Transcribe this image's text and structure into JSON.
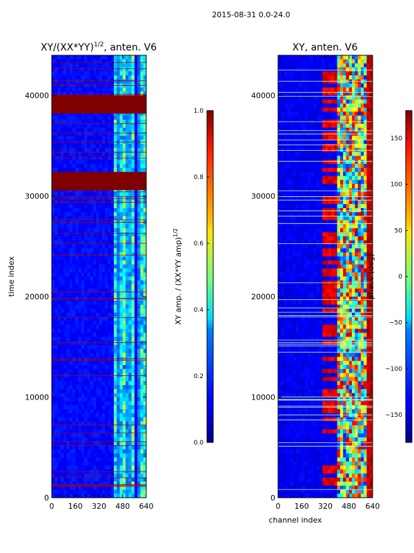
{
  "figure": {
    "suptitle": "2015-08-31 0.0-24.0"
  },
  "chart_data": [
    {
      "type": "heatmap",
      "title": "XY/(XX*YY)",
      "title_sup": "1/2",
      "title_tail": ", anten. V6",
      "xlabel": "",
      "ylabel": "time index",
      "xlim": [
        0,
        640
      ],
      "ylim": [
        0,
        44000
      ],
      "xticks": [
        0,
        160,
        320,
        480,
        640
      ],
      "yticks": [
        0,
        10000,
        20000,
        30000,
        40000
      ],
      "colormap": "jet",
      "value_range": [
        0,
        1
      ],
      "saturated_bands": [
        [
          38200,
          40000
        ],
        [
          30600,
          32400
        ]
      ],
      "colorbar": {
        "label": "XY amp. / (XX*YY amp)",
        "label_sup": "1/2",
        "range": [
          0,
          1
        ],
        "ticks": [
          0.0,
          0.2,
          0.4,
          0.6,
          0.8,
          1.0
        ],
        "tick_labels": [
          "0.0",
          "0.2",
          "0.4",
          "0.6",
          "0.8",
          "1.0"
        ]
      }
    },
    {
      "type": "heatmap",
      "title": "XY, anten. V6",
      "xlabel": "channel index",
      "ylabel": "",
      "xlim": [
        0,
        640
      ],
      "ylim": [
        0,
        44000
      ],
      "xticks": [
        0,
        160,
        320,
        480,
        640
      ],
      "yticks": [
        0,
        10000,
        20000,
        30000,
        40000
      ],
      "colormap": "jet",
      "value_range": [
        -180,
        180
      ],
      "colorbar": {
        "label": "phase (deg)",
        "range": [
          -180,
          180
        ],
        "ticks": [
          -150,
          -100,
          -50,
          0,
          50,
          100,
          150
        ],
        "tick_labels": [
          "−150",
          "−100",
          "−50",
          "0",
          "50",
          "100",
          "150"
        ]
      }
    }
  ]
}
